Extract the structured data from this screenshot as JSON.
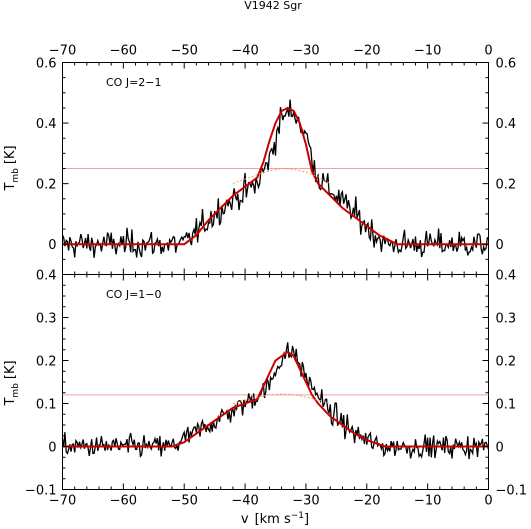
{
  "chart_data": [
    {
      "type": "line",
      "title": "V1942 Sgr",
      "panel_label": "CO J=2−1",
      "xlabel": "",
      "ylabel_main": "T",
      "ylabel_sub": "mb",
      "ylabel_unit": "[K]",
      "xlim": [
        -70,
        0
      ],
      "ylim": [
        -0.1,
        0.6
      ],
      "x_ticks": [
        -70,
        -60,
        -50,
        -40,
        -30,
        -20,
        -10,
        0
      ],
      "y_ticks": [
        0,
        0.2,
        0.4,
        0.6
      ],
      "x_tick_labels_top": [
        "−70",
        "−60",
        "−50",
        "−40",
        "−30",
        "−20",
        "−10",
        "0"
      ],
      "y_tick_labels_left": [
        "0",
        "0.2",
        "0.4",
        "0.6"
      ],
      "y_tick_labels_right": [
        "0",
        "0.2",
        "0.4",
        "0.6"
      ],
      "hline": 0.25,
      "noise_amp": 0.038,
      "series": [
        {
          "role": "spectrum",
          "color": "#000000",
          "profile": [
            [
              -70,
              0
            ],
            [
              -50,
              0
            ],
            [
              -44,
              0.12
            ],
            [
              -38,
              0.2
            ],
            [
              -36,
              0.28
            ],
            [
              -34,
              0.42
            ],
            [
              -32,
              0.44
            ],
            [
              -30,
              0.36
            ],
            [
              -28,
              0.22
            ],
            [
              -24,
              0.14
            ],
            [
              -20,
              0.06
            ],
            [
              -17,
              0
            ],
            [
              0,
              0
            ]
          ]
        },
        {
          "role": "fit",
          "color": "#cc0000",
          "x": [
            -70,
            -50,
            -48,
            -46,
            -44,
            -42,
            -40,
            -38,
            -37,
            -36,
            -35,
            -34,
            -33,
            -32,
            -31,
            -30,
            -29,
            -28,
            -26,
            -24,
            -22,
            -20,
            -18,
            -16,
            -15,
            0
          ],
          "y": [
            0,
            0,
            0.03,
            0.08,
            0.12,
            0.16,
            0.19,
            0.22,
            0.27,
            0.34,
            0.4,
            0.44,
            0.45,
            0.44,
            0.4,
            0.33,
            0.24,
            0.2,
            0.16,
            0.12,
            0.09,
            0.06,
            0.03,
            0.01,
            0,
            0
          ]
        },
        {
          "role": "component",
          "color": "#ee9966",
          "x": [
            -42,
            -40,
            -38,
            -36,
            -34,
            -32,
            -30,
            -28,
            -26
          ],
          "y": [
            0.2,
            0.215,
            0.23,
            0.242,
            0.25,
            0.247,
            0.238,
            0.222,
            0.2
          ]
        }
      ]
    },
    {
      "type": "line",
      "panel_label": "CO J=1−0",
      "xlabel": "v",
      "xlabel_unit": "[km s",
      "xlabel_exp": "−1",
      "xlabel_close": "]",
      "ylabel_main": "T",
      "ylabel_sub": "mb",
      "ylabel_unit": "[K]",
      "xlim": [
        -70,
        0
      ],
      "ylim": [
        -0.1,
        0.4
      ],
      "x_ticks": [
        -70,
        -60,
        -50,
        -40,
        -30,
        -20,
        -10,
        0
      ],
      "y_ticks": [
        -0.1,
        0,
        0.1,
        0.2,
        0.3,
        0.4
      ],
      "x_tick_labels_bottom": [
        "−70",
        "−60",
        "−50",
        "−40",
        "−30",
        "−20",
        "−10",
        "0"
      ],
      "y_tick_labels_left": [
        "−0.1",
        "0",
        "0.1",
        "0.2",
        "0.3",
        "0.4"
      ],
      "y_tick_labels_right": [
        "−0.1",
        "0",
        "0.1",
        "0.2",
        "0.3",
        "0.4"
      ],
      "hline": 0.12,
      "noise_amp": 0.022,
      "series": [
        {
          "role": "spectrum",
          "color": "#000000",
          "profile": [
            [
              -70,
              0
            ],
            [
              -52,
              0
            ],
            [
              -46,
              0.05
            ],
            [
              -40,
              0.1
            ],
            [
              -36,
              0.14
            ],
            [
              -34,
              0.21
            ],
            [
              -32,
              0.22
            ],
            [
              -30,
              0.16
            ],
            [
              -26,
              0.08
            ],
            [
              -22,
              0.03
            ],
            [
              -18,
              0
            ],
            [
              0,
              0
            ]
          ]
        },
        {
          "role": "fit",
          "color": "#cc0000",
          "x": [
            -70,
            -52,
            -50,
            -48,
            -46,
            -44,
            -42,
            -40,
            -38,
            -37,
            -36,
            -35,
            -34,
            -33,
            -32,
            -31,
            -30,
            -29,
            -28,
            -26,
            -24,
            -22,
            -20,
            -18,
            -17,
            0
          ],
          "y": [
            0,
            0,
            0.01,
            0.03,
            0.05,
            0.07,
            0.09,
            0.1,
            0.11,
            0.14,
            0.17,
            0.2,
            0.21,
            0.22,
            0.21,
            0.18,
            0.15,
            0.12,
            0.1,
            0.07,
            0.05,
            0.03,
            0.015,
            0.005,
            0,
            0
          ]
        },
        {
          "role": "component",
          "color": "#ee9966",
          "x": [
            -42,
            -40,
            -38,
            -36,
            -34,
            -32,
            -30,
            -28,
            -26
          ],
          "y": [
            0.1,
            0.108,
            0.115,
            0.12,
            0.122,
            0.12,
            0.115,
            0.108,
            0.1
          ]
        }
      ]
    }
  ]
}
